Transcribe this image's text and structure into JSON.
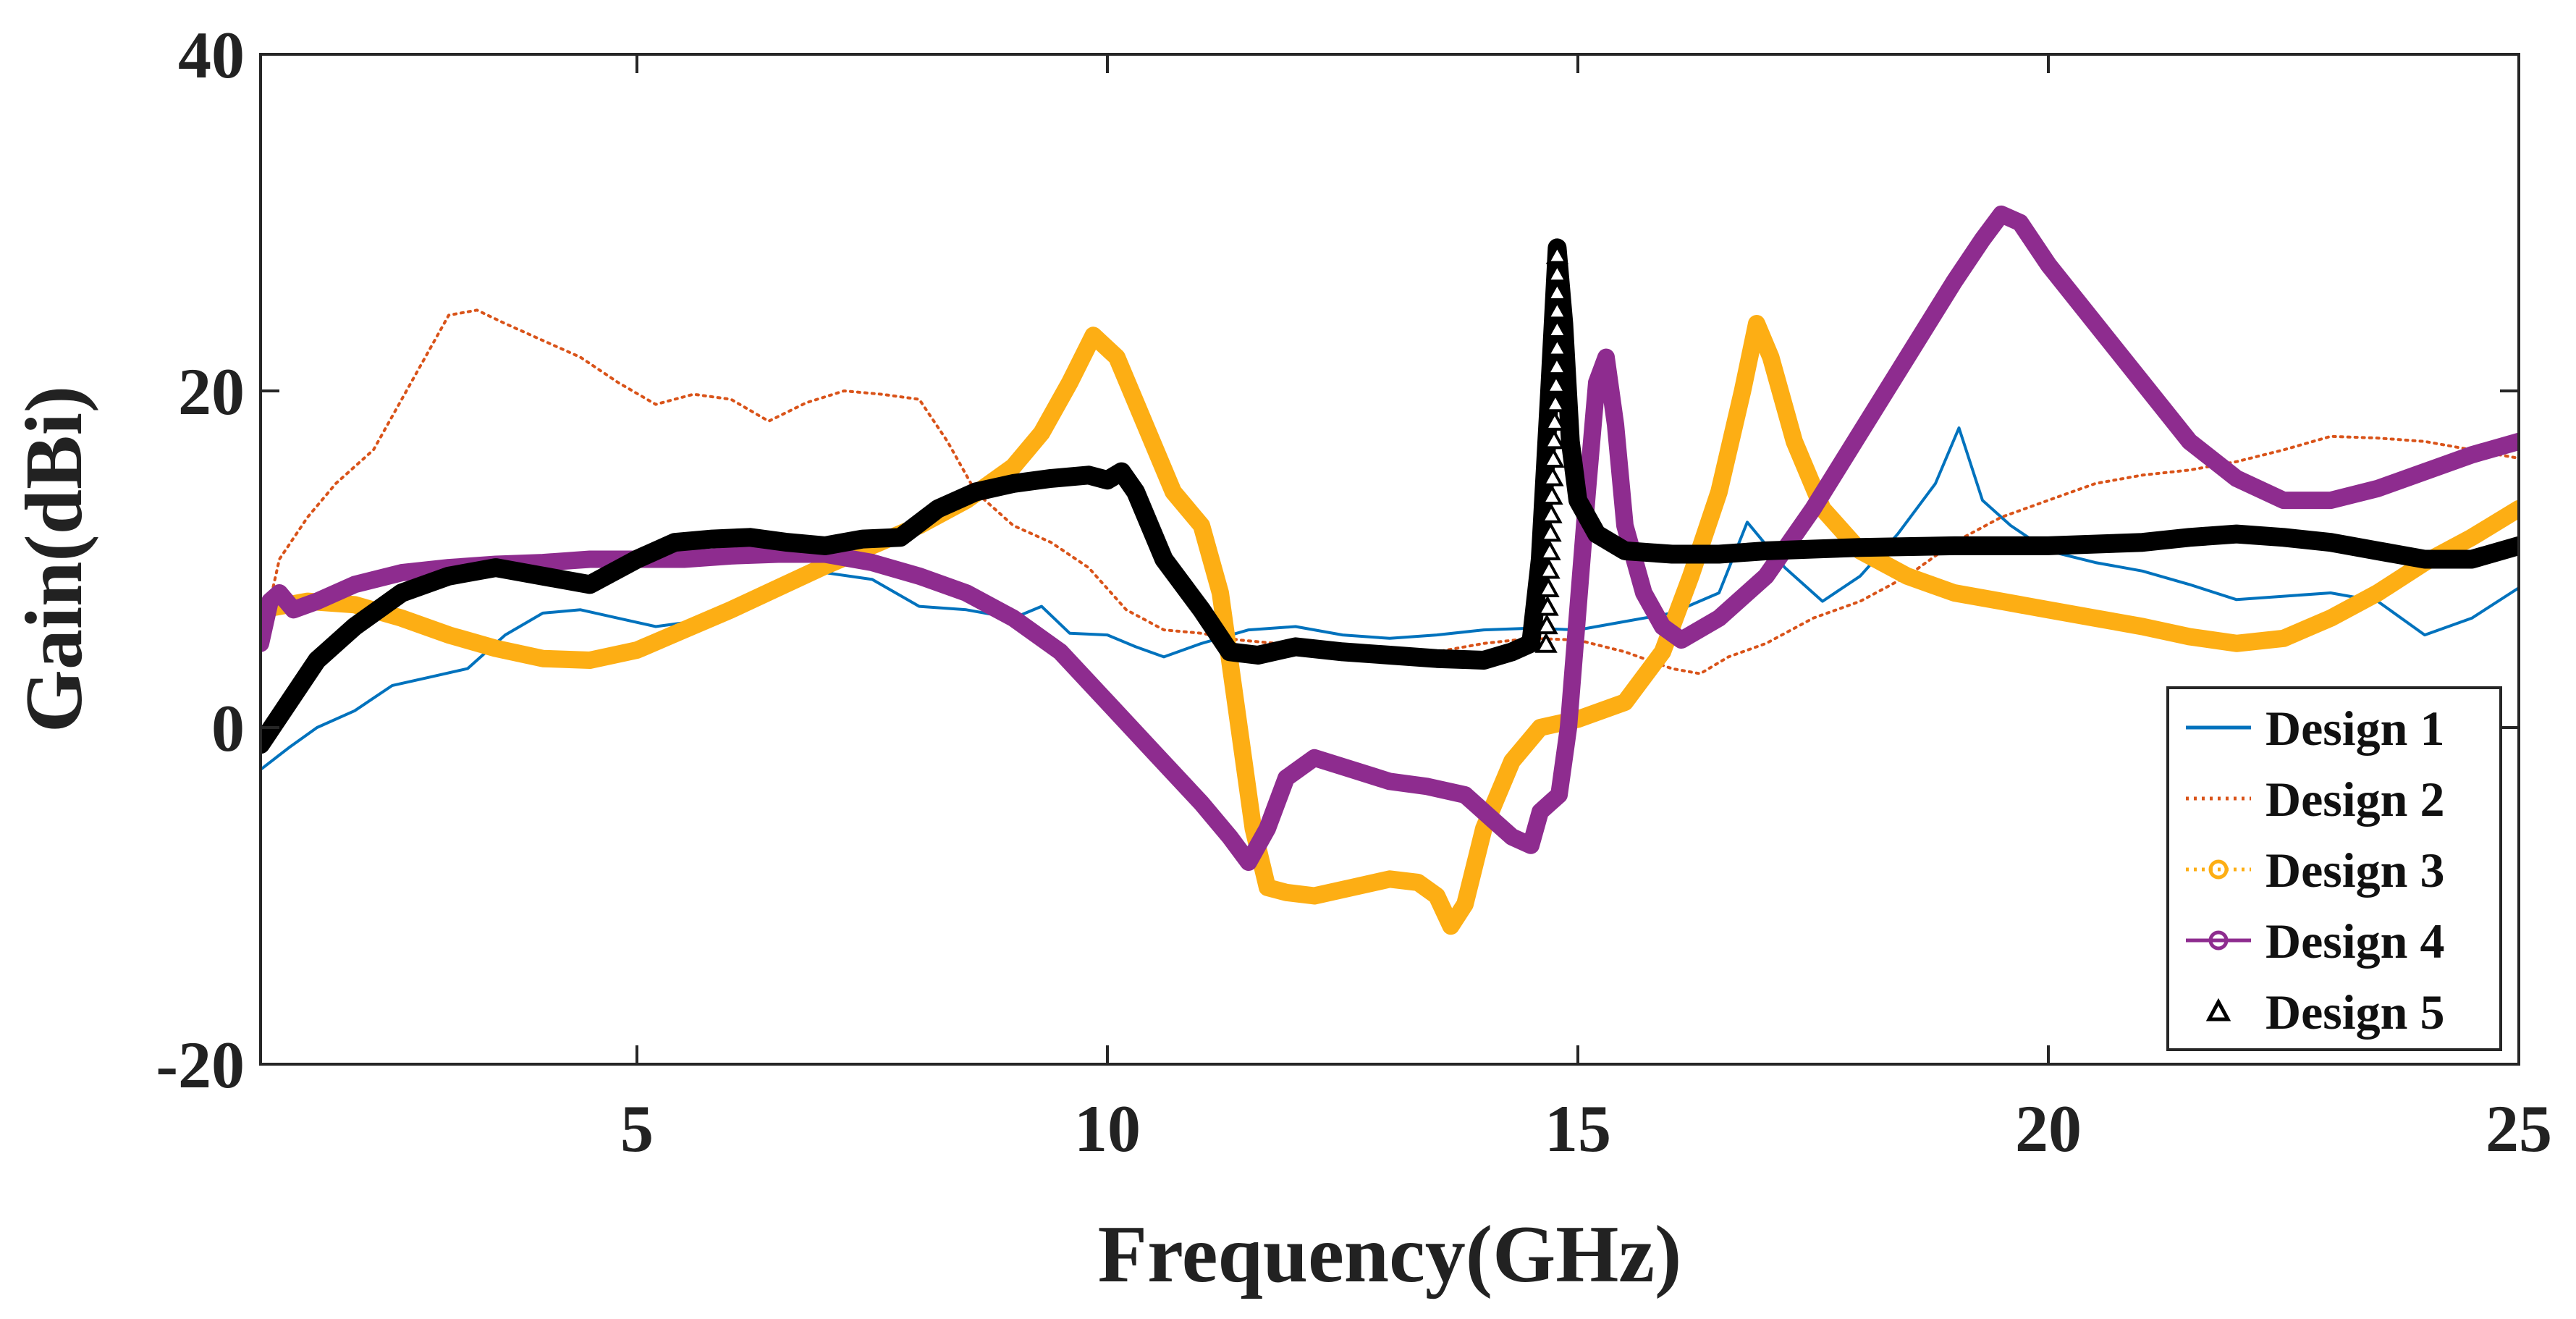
{
  "chart_data": {
    "type": "line",
    "title": "",
    "xlabel": "Frequency(GHz)",
    "ylabel": "Gain(dBi)",
    "xlim": [
      1,
      25
    ],
    "ylim": [
      -20,
      40
    ],
    "xticks": [
      5,
      10,
      15,
      20,
      25
    ],
    "xtick_labels": [
      "5",
      "10",
      "15",
      "20",
      "25"
    ],
    "yticks": [
      -20,
      0,
      20,
      40
    ],
    "ytick_labels": [
      "-20",
      "0",
      "20",
      "40"
    ],
    "grid": false,
    "legend_position": "bottom-right",
    "series": [
      {
        "name": "Design 1",
        "color": "#0072BD",
        "style": "solid",
        "marker": "none",
        "x": [
          1.0,
          1.3,
          1.6,
          2.0,
          2.4,
          2.8,
          3.2,
          3.6,
          4.0,
          4.4,
          4.8,
          5.2,
          5.6,
          6.0,
          6.5,
          7.0,
          7.5,
          8.0,
          8.5,
          9.0,
          9.3,
          9.6,
          10.0,
          10.3,
          10.6,
          11.0,
          11.5,
          12.0,
          12.5,
          13.0,
          13.5,
          14.0,
          14.5,
          15.0,
          15.5,
          16.0,
          16.5,
          16.8,
          17.2,
          17.6,
          18.0,
          18.4,
          18.8,
          19.05,
          19.3,
          19.6,
          20.0,
          20.5,
          21.0,
          21.5,
          22.0,
          22.5,
          23.0,
          23.5,
          24.0,
          24.5,
          25.0
        ],
        "y": [
          -2.5,
          -1.2,
          0.0,
          1.0,
          2.5,
          3.0,
          3.5,
          5.5,
          6.8,
          7.0,
          6.5,
          6.0,
          6.3,
          7.0,
          8.0,
          9.2,
          8.8,
          7.2,
          7.0,
          6.5,
          7.2,
          5.6,
          5.5,
          4.8,
          4.2,
          5.0,
          5.8,
          6.0,
          5.5,
          5.3,
          5.5,
          5.8,
          5.9,
          5.8,
          6.3,
          6.8,
          8.0,
          12.2,
          9.5,
          7.5,
          9.0,
          11.5,
          14.5,
          17.8,
          13.5,
          12.0,
          10.5,
          9.8,
          9.3,
          8.5,
          7.6,
          7.8,
          8.0,
          7.5,
          5.5,
          6.5,
          8.3
        ]
      },
      {
        "name": "Design 2",
        "color": "#D95319",
        "style": "dotted",
        "marker": "none",
        "x": [
          1.0,
          1.2,
          1.5,
          1.8,
          2.2,
          2.6,
          3.0,
          3.3,
          3.6,
          4.0,
          4.4,
          4.8,
          5.2,
          5.6,
          6.0,
          6.4,
          6.8,
          7.2,
          7.6,
          8.0,
          8.3,
          8.6,
          9.0,
          9.4,
          9.8,
          10.2,
          10.6,
          11.0,
          11.4,
          11.8,
          12.2,
          12.6,
          13.0,
          13.5,
          14.0,
          14.5,
          15.0,
          15.5,
          16.0,
          16.3,
          16.6,
          17.0,
          17.5,
          18.0,
          18.5,
          19.0,
          19.5,
          20.0,
          20.5,
          21.0,
          21.5,
          22.0,
          22.5,
          23.0,
          23.5,
          24.0,
          24.5,
          25.0
        ],
        "y": [
          5.0,
          10.0,
          12.5,
          14.5,
          16.5,
          20.5,
          24.5,
          24.8,
          24.0,
          23.0,
          22.0,
          20.5,
          19.2,
          19.8,
          19.5,
          18.2,
          19.3,
          20.0,
          19.8,
          19.5,
          17.0,
          14.0,
          12.0,
          11.0,
          9.5,
          7.0,
          5.8,
          5.6,
          5.2,
          5.0,
          4.5,
          4.3,
          4.0,
          4.5,
          5.0,
          5.3,
          5.2,
          4.5,
          3.5,
          3.2,
          4.2,
          5.0,
          6.5,
          7.5,
          9.0,
          11.0,
          12.5,
          13.5,
          14.5,
          15.0,
          15.3,
          15.8,
          16.5,
          17.3,
          17.2,
          17.0,
          16.5,
          16.0
        ]
      },
      {
        "name": "Design 3",
        "color": "#FDAE14",
        "style": "thick-markers",
        "marker": "circle",
        "x": [
          1.0,
          1.5,
          2.0,
          2.5,
          3.0,
          3.5,
          4.0,
          4.5,
          5.0,
          5.5,
          6.0,
          6.5,
          7.0,
          7.5,
          8.0,
          8.5,
          9.0,
          9.3,
          9.6,
          9.85,
          10.1,
          10.4,
          10.7,
          11.0,
          11.2,
          11.4,
          11.55,
          11.7,
          11.9,
          12.2,
          12.6,
          13.0,
          13.3,
          13.5,
          13.65,
          13.8,
          14.0,
          14.3,
          14.6,
          15.0,
          15.5,
          15.9,
          16.2,
          16.5,
          16.75,
          16.9,
          17.05,
          17.3,
          17.6,
          18.0,
          18.5,
          19.0,
          19.5,
          20.0,
          20.5,
          21.0,
          21.5,
          22.0,
          22.5,
          23.0,
          23.5,
          24.0,
          24.5,
          25.0
        ],
        "y": [
          7.0,
          7.5,
          7.3,
          6.5,
          5.5,
          4.7,
          4.1,
          4.0,
          4.6,
          5.8,
          7.0,
          8.3,
          9.6,
          10.8,
          12.0,
          13.5,
          15.5,
          17.5,
          20.5,
          23.3,
          22.0,
          18.0,
          14.0,
          12.0,
          8.0,
          0.0,
          -6.0,
          -9.5,
          -9.8,
          -10.0,
          -9.5,
          -9.0,
          -9.2,
          -10.0,
          -11.8,
          -10.5,
          -6.0,
          -2.0,
          0.0,
          0.5,
          1.5,
          4.5,
          9.0,
          14.0,
          20.0,
          24.0,
          22.0,
          17.0,
          13.0,
          10.5,
          9.0,
          8.0,
          7.5,
          7.0,
          6.5,
          6.0,
          5.4,
          5.0,
          5.3,
          6.5,
          8.0,
          9.8,
          11.3,
          13.0
        ]
      },
      {
        "name": "Design 4",
        "color": "#8E2C8F",
        "style": "thick-markers",
        "marker": "circle",
        "x": [
          1.0,
          1.1,
          1.2,
          1.35,
          1.6,
          2.0,
          2.5,
          3.0,
          3.5,
          4.0,
          4.5,
          5.0,
          5.5,
          6.0,
          6.5,
          7.0,
          7.5,
          8.0,
          8.5,
          9.0,
          9.5,
          10.0,
          10.5,
          11.0,
          11.3,
          11.5,
          11.7,
          11.9,
          12.2,
          12.6,
          13.0,
          13.4,
          13.8,
          14.1,
          14.3,
          14.5,
          14.6,
          14.7,
          14.8,
          14.9,
          15.0,
          15.1,
          15.2,
          15.3,
          15.4,
          15.5,
          15.7,
          15.9,
          16.1,
          16.5,
          17.0,
          17.5,
          18.0,
          18.5,
          19.0,
          19.3,
          19.5,
          19.7,
          20.0,
          20.5,
          21.0,
          21.5,
          22.0,
          22.5,
          23.0,
          23.5,
          24.0,
          24.5,
          25.0
        ],
        "y": [
          5.0,
          7.5,
          8.0,
          7.0,
          7.5,
          8.5,
          9.2,
          9.5,
          9.7,
          9.8,
          10.0,
          10.0,
          10.0,
          10.2,
          10.3,
          10.3,
          9.8,
          9.0,
          8.0,
          6.5,
          4.5,
          1.5,
          -1.5,
          -4.5,
          -6.5,
          -8.0,
          -6.0,
          -3.0,
          -1.8,
          -2.5,
          -3.2,
          -3.5,
          -4.0,
          -5.5,
          -6.5,
          -7.0,
          -5.0,
          -4.5,
          -4.0,
          0.0,
          7.0,
          14.0,
          20.5,
          22.0,
          18.0,
          12.0,
          8.0,
          6.0,
          5.2,
          6.5,
          9.0,
          13.0,
          17.5,
          22.0,
          26.5,
          29.0,
          30.5,
          30.0,
          27.5,
          24.0,
          20.5,
          17.0,
          14.8,
          13.5,
          13.5,
          14.2,
          15.2,
          16.2,
          17.0
        ]
      },
      {
        "name": "Design 5",
        "color": "#000000",
        "style": "thick-markers",
        "marker": "triangle",
        "x": [
          1.0,
          1.3,
          1.6,
          2.0,
          2.5,
          3.0,
          3.5,
          4.0,
          4.5,
          5.0,
          5.4,
          5.8,
          6.2,
          6.6,
          7.0,
          7.4,
          7.8,
          8.2,
          8.6,
          9.0,
          9.4,
          9.8,
          10.0,
          10.15,
          10.3,
          10.6,
          11.0,
          11.3,
          11.6,
          12.0,
          12.5,
          13.0,
          13.5,
          14.0,
          14.3,
          14.5,
          14.6,
          14.7,
          14.78,
          14.85,
          14.92,
          15.0,
          15.2,
          15.5,
          16.0,
          16.5,
          17.0,
          17.5,
          18.0,
          19.0,
          20.0,
          21.0,
          21.5,
          22.0,
          22.5,
          23.0,
          23.5,
          24.0,
          24.5,
          25.0
        ],
        "y": [
          -1.0,
          1.5,
          4.0,
          6.0,
          8.0,
          9.0,
          9.5,
          9.0,
          8.5,
          10.0,
          11.0,
          11.2,
          11.3,
          11.0,
          10.8,
          11.2,
          11.3,
          13.0,
          14.0,
          14.5,
          14.8,
          15.0,
          14.7,
          15.2,
          14.0,
          10.0,
          7.0,
          4.5,
          4.3,
          4.8,
          4.5,
          4.3,
          4.1,
          4.0,
          4.5,
          5.0,
          10.0,
          20.0,
          28.5,
          24.0,
          17.0,
          13.5,
          11.5,
          10.5,
          10.3,
          10.3,
          10.5,
          10.6,
          10.7,
          10.8,
          10.8,
          11.0,
          11.3,
          11.5,
          11.3,
          11.0,
          10.5,
          10.0,
          10.0,
          10.8
        ]
      }
    ]
  },
  "legend": {
    "entries": [
      {
        "label": "Design 1",
        "symbol": "line"
      },
      {
        "label": "Design 2",
        "symbol": "dotted-line"
      },
      {
        "label": "Design 3",
        "symbol": "dotted-line-circle"
      },
      {
        "label": "Design 4",
        "symbol": "line-circle"
      },
      {
        "label": "Design 5",
        "symbol": "triangle"
      }
    ]
  }
}
